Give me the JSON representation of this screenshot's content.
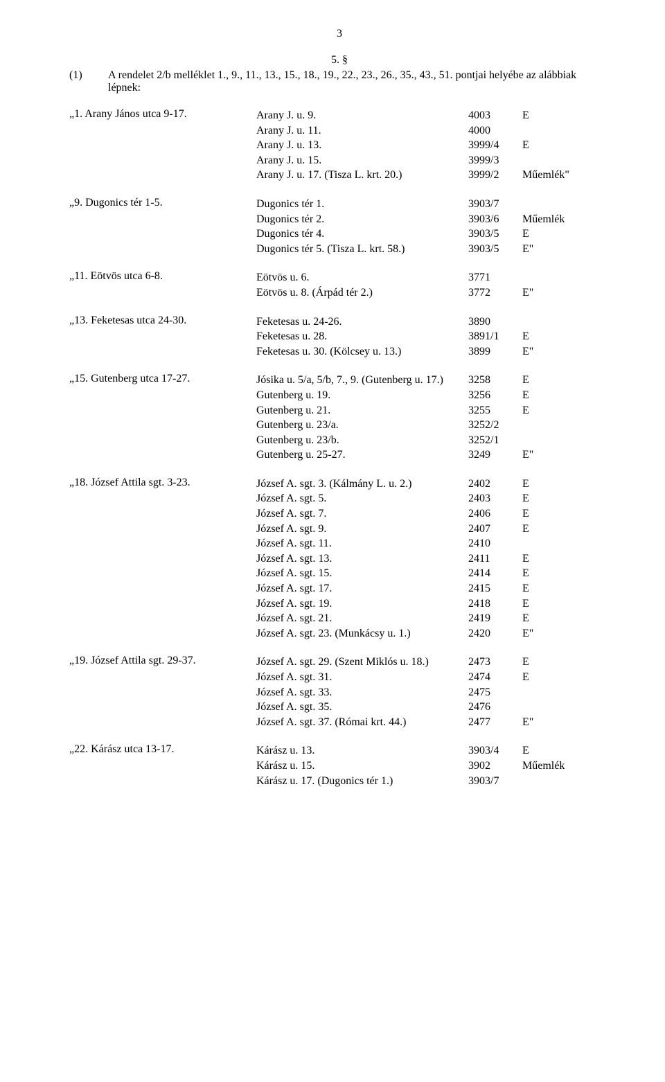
{
  "pageNumber": "3",
  "sectionNumber": "5. §",
  "intro": {
    "marker": "(1)",
    "text": "A rendelet 2/b melléklet 1., 9., 11., 13., 15., 18., 19., 22., 23., 26., 35., 43., 51. pontjai helyébe az alábbiak lépnek:"
  },
  "blocks": [
    {
      "label": "„1. Arany János utca 9-17.",
      "rows": [
        {
          "c1": "Arany J. u. 9.",
          "c2": "4003",
          "c3": "E"
        },
        {
          "c1": "Arany J. u. 11.",
          "c2": "4000",
          "c3": ""
        },
        {
          "c1": "Arany J. u. 13.",
          "c2": "3999/4",
          "c3": "E"
        },
        {
          "c1": "Arany J. u. 15.",
          "c2": "3999/3",
          "c3": ""
        },
        {
          "c1": "Arany J. u. 17. (Tisza L. krt. 20.)",
          "c2": "3999/2",
          "c3": "Műemlék\""
        }
      ]
    },
    {
      "label": "„9. Dugonics tér 1-5.",
      "rows": [
        {
          "c1": "Dugonics tér 1.",
          "c2": "3903/7",
          "c3": ""
        },
        {
          "c1": "Dugonics tér 2.",
          "c2": "3903/6",
          "c3": "Műemlék"
        },
        {
          "c1": "Dugonics tér 4.",
          "c2": "3903/5",
          "c3": "E"
        },
        {
          "c1": "Dugonics tér 5. (Tisza L. krt. 58.)",
          "c2": "3903/5",
          "c3": "E\""
        }
      ]
    },
    {
      "label": "„11. Eötvös utca 6-8.",
      "rows": [
        {
          "c1": "Eötvös u. 6.",
          "c2": "3771",
          "c3": ""
        },
        {
          "c1": "Eötvös u. 8. (Árpád tér 2.)",
          "c2": "3772",
          "c3": "E\""
        }
      ]
    },
    {
      "label": "„13. Feketesas utca 24-30.",
      "rows": [
        {
          "c1": "Feketesas u. 24-26.",
          "c2": "3890",
          "c3": ""
        },
        {
          "c1": "Feketesas u. 28.",
          "c2": "3891/1",
          "c3": "E"
        },
        {
          "c1": "Feketesas u. 30. (Kölcsey u. 13.)",
          "c2": "3899",
          "c3": "E\""
        }
      ]
    },
    {
      "label": "„15. Gutenberg utca 17-27.",
      "rows": [
        {
          "c1": "Jósika u. 5/a, 5/b, 7., 9. (Gutenberg u. 17.)",
          "c2": "3258",
          "c3": "E"
        },
        {
          "c1": "Gutenberg u. 19.",
          "c2": "3256",
          "c3": "E"
        },
        {
          "c1": "Gutenberg u. 21.",
          "c2": "3255",
          "c3": "E"
        },
        {
          "c1": "Gutenberg u. 23/a.",
          "c2": "3252/2",
          "c3": ""
        },
        {
          "c1": "Gutenberg u. 23/b.",
          "c2": "3252/1",
          "c3": ""
        },
        {
          "c1": "Gutenberg u. 25-27.",
          "c2": "3249",
          "c3": "E\""
        }
      ]
    },
    {
      "label": "„18. József Attila sgt. 3-23.",
      "rows": [
        {
          "c1": "József A. sgt. 3. (Kálmány L. u. 2.)",
          "c2": "2402",
          "c3": "E"
        },
        {
          "c1": "József A. sgt. 5.",
          "c2": "2403",
          "c3": "E"
        },
        {
          "c1": "József A. sgt. 7.",
          "c2": "2406",
          "c3": "E"
        },
        {
          "c1": "József A. sgt. 9.",
          "c2": "2407",
          "c3": "E"
        },
        {
          "c1": "József A. sgt. 11.",
          "c2": "2410",
          "c3": ""
        },
        {
          "c1": "József A. sgt. 13.",
          "c2": "2411",
          "c3": "E"
        },
        {
          "c1": "József A. sgt. 15.",
          "c2": "2414",
          "c3": "E"
        },
        {
          "c1": "József A. sgt. 17.",
          "c2": "2415",
          "c3": "E"
        },
        {
          "c1": "József A. sgt. 19.",
          "c2": "2418",
          "c3": "E"
        },
        {
          "c1": "József A. sgt. 21.",
          "c2": "2419",
          "c3": "E"
        },
        {
          "c1": "József A. sgt. 23. (Munkácsy u. 1.)",
          "c2": "2420",
          "c3": "E\""
        }
      ]
    },
    {
      "label": "„19. József Attila sgt. 29-37.",
      "rows": [
        {
          "c1": "József A. sgt. 29. (Szent Miklós u. 18.)",
          "c2": "2473",
          "c3": "E"
        },
        {
          "c1": "József A. sgt. 31.",
          "c2": "2474",
          "c3": "E"
        },
        {
          "c1": "József A. sgt. 33.",
          "c2": "2475",
          "c3": ""
        },
        {
          "c1": "József A. sgt. 35.",
          "c2": "2476",
          "c3": ""
        },
        {
          "c1": "József A. sgt. 37. (Római krt. 44.)",
          "c2": "2477",
          "c3": "E\""
        }
      ]
    },
    {
      "label": "„22. Kárász utca 13-17.",
      "rows": [
        {
          "c1": "Kárász u. 13.",
          "c2": "3903/4",
          "c3": "E"
        },
        {
          "c1": "Kárász u. 15.",
          "c2": "3902",
          "c3": "Műemlék"
        },
        {
          "c1": "Kárász u. 17. (Dugonics tér 1.)",
          "c2": "3903/7",
          "c3": ""
        }
      ]
    }
  ]
}
